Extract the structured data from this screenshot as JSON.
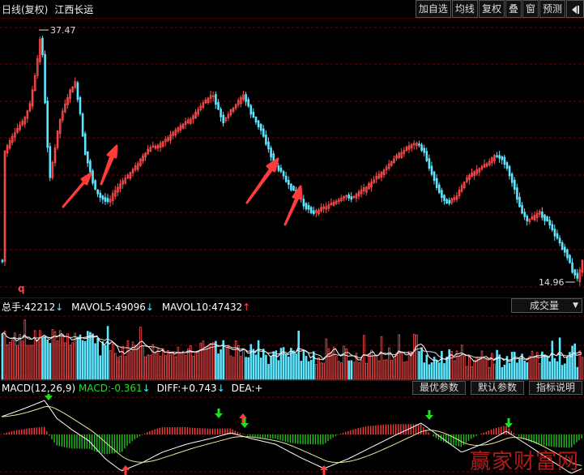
{
  "header": {
    "period_label": "日线(复权)",
    "stock_name": "江西长运",
    "buttons": [
      "加自选",
      "均线",
      "复权",
      "叠",
      "窗",
      "预测"
    ]
  },
  "price_chart": {
    "high_label": "37.47",
    "low_label": "14.96",
    "marker": "q"
  },
  "volume": {
    "total_label": "总手:",
    "total_value": "42212",
    "mavol5_label": "MAVOL5:",
    "mavol5_value": "49096",
    "mavol10_label": "MAVOL10:",
    "mavol10_value": "47432",
    "select_value": "成交量"
  },
  "macd": {
    "name": "MACD(12,26,9)",
    "macd_label": "MACD:",
    "macd_value": "-0.361",
    "diff_label": "DIFF:",
    "diff_value": "+0.743",
    "dea_label": "DEA:",
    "dea_value": "+",
    "buttons": [
      "最优参数",
      "默认参数",
      "指标说明"
    ]
  },
  "watermark": "赢家财富网",
  "colors": {
    "up": "#ff4b4b",
    "down": "#5ee6ff",
    "grid": "#7a0000",
    "accent_arrow": "#ff3b3b"
  }
}
